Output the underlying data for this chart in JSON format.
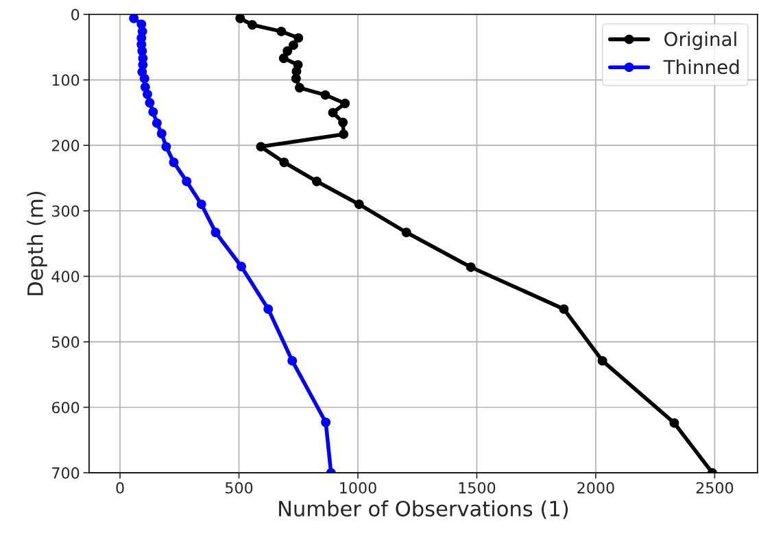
{
  "chart_data": {
    "type": "line",
    "xlabel": "Number of Observations (1)",
    "ylabel": "Depth (m)",
    "xlim": [
      -130,
      2680
    ],
    "ylim": [
      700,
      0
    ],
    "xticks": [
      0,
      500,
      1000,
      1500,
      2000,
      2500
    ],
    "yticks": [
      0,
      100,
      200,
      300,
      400,
      500,
      600,
      700
    ],
    "grid": true,
    "legend": "top right",
    "marker": "circle",
    "line_style": "solid",
    "series": [
      {
        "name": "Original",
        "color": "#000000",
        "x": [
          505,
          556,
          678,
          750,
          729,
          704,
          688,
          748,
          742,
          740,
          755,
          863,
          946,
          895,
          937,
          940,
          592,
          690,
          827,
          1005,
          1204,
          1475,
          1866,
          2028,
          2330,
          2490
        ],
        "values": [
          6,
          16,
          26,
          36,
          47,
          56,
          67,
          77,
          87,
          98,
          112,
          123,
          136,
          150,
          165,
          183,
          202,
          226,
          255,
          290,
          333,
          386,
          450,
          529,
          624,
          700
        ]
      },
      {
        "name": "Thinned",
        "color": "#0000ff",
        "x": [
          58,
          90,
          94,
          90,
          90,
          93,
          96,
          96,
          93,
          103,
          106,
          115,
          125,
          139,
          155,
          175,
          194,
          226,
          280,
          342,
          402,
          510,
          623,
          724,
          865,
          887
        ],
        "values": [
          6,
          15,
          26,
          36,
          46,
          56,
          67,
          77,
          88,
          98,
          111,
          122,
          135,
          149,
          166,
          182,
          202,
          226,
          255,
          290,
          333,
          385,
          450,
          529,
          623,
          700
        ]
      }
    ]
  }
}
